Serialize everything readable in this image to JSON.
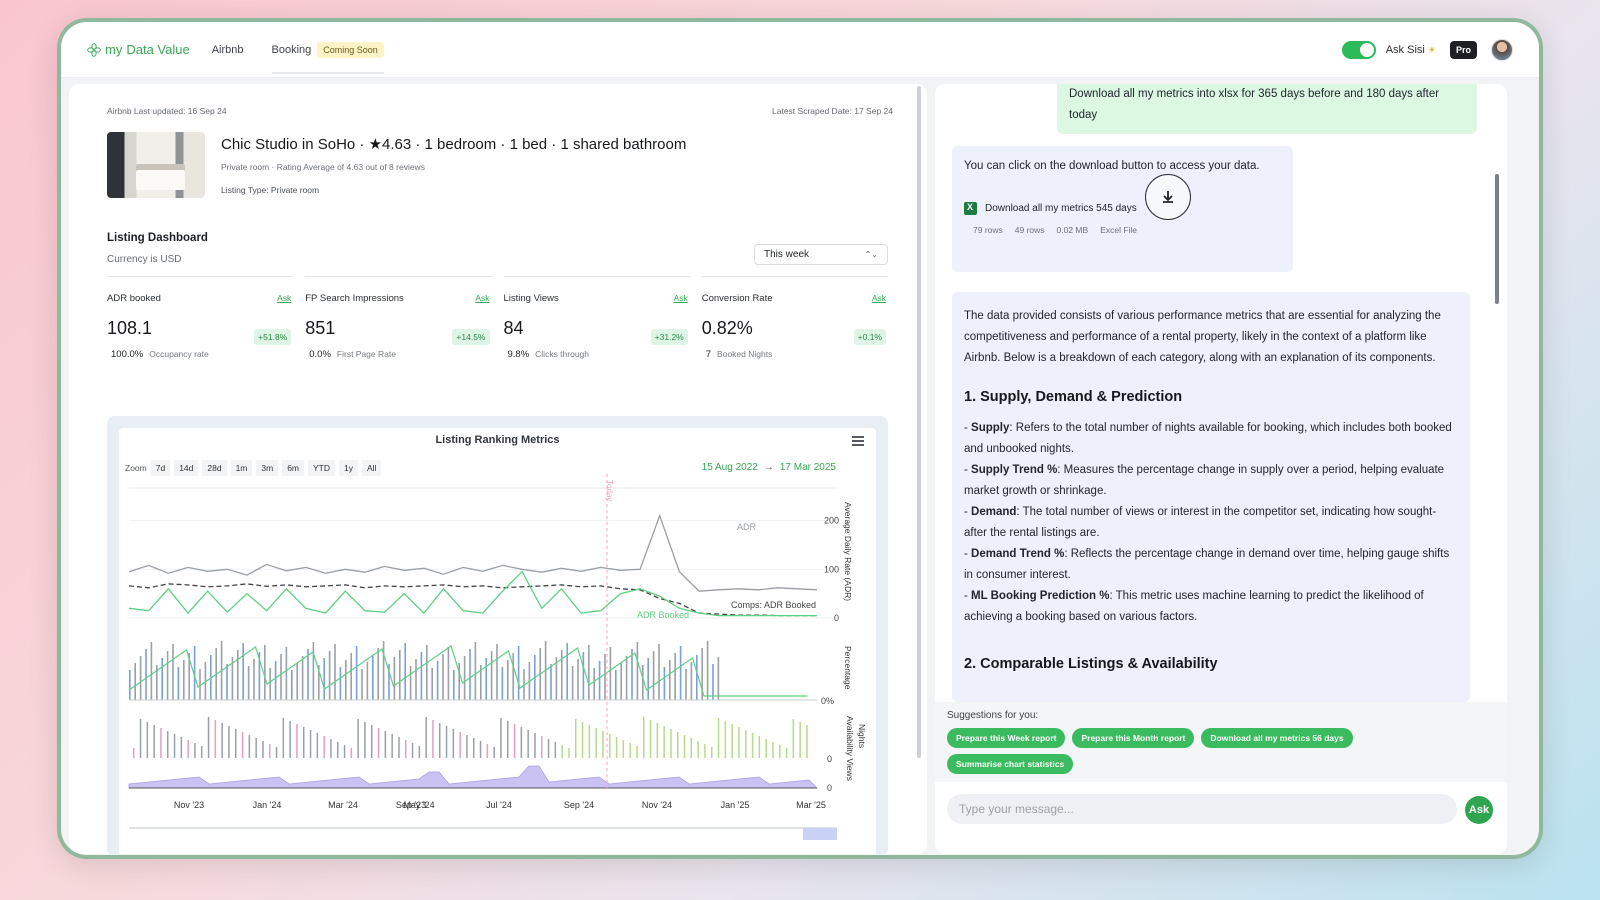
{
  "nav": {
    "logo_prefix": "my",
    "logo_main": "Data Value",
    "links": [
      "Airbnb",
      "Booking"
    ],
    "coming_soon": "Coming Soon",
    "ask_label": "Ask Sisi",
    "pro": "Pro"
  },
  "listing": {
    "last_updated": "Airbnb Last updated: 16 Sep 24",
    "scraped": "Latest Scraped Date: 17 Sep 24",
    "title": "Chic Studio in SoHo · ★4.63 · 1 bedroom · 1 bed · 1 shared bathroom",
    "subtitle": "Private room · Rating Average of 4.63 out of 8 reviews",
    "type": "Listing Type: Private room"
  },
  "dashboard": {
    "title": "Listing Dashboard",
    "currency": "Currency is USD",
    "period": "This week",
    "metrics": [
      {
        "name": "ADR booked",
        "ask": "Ask",
        "value": "108.1",
        "change": "+51.8%",
        "sub_value": "100.0%",
        "sub_label": "Occupancy rate"
      },
      {
        "name": "FP Search Impressions",
        "ask": "Ask",
        "value": "851",
        "change": "+14.5%",
        "sub_value": "0.0%",
        "sub_label": "First Page Rate"
      },
      {
        "name": "Listing Views",
        "ask": "Ask",
        "value": "84",
        "change": "+31.2%",
        "sub_value": "9.8%",
        "sub_label": "Clicks through"
      },
      {
        "name": "Conversion Rate",
        "ask": "Ask",
        "value": "0.82%",
        "change": "+0.1%",
        "sub_value": "7",
        "sub_label": "Booked Nights"
      }
    ]
  },
  "chart": {
    "zoom_label": "Zoom",
    "zoom_options": [
      "7d",
      "14d",
      "28d",
      "1m",
      "3m",
      "6m",
      "YTD",
      "1y",
      "All"
    ],
    "range_start": "15 Aug 2022",
    "range_end": "17 Mar 2025"
  },
  "chart_data": {
    "type": "line",
    "title": "Listing Ranking Metrics",
    "today_label": "Today",
    "x_ticks": [
      "Nov '23",
      "Jan '24",
      "Mar '24",
      "May '24",
      "Sep '23",
      "Jul '24",
      "Sep '24",
      "Nov '24",
      "Jan '25",
      "Mar '25"
    ],
    "panels": [
      {
        "ylabel": "Average Daily Rate (ADR)",
        "y_ticks": [
          "200",
          "100",
          "0"
        ],
        "ylim": [
          0,
          230
        ],
        "series": [
          {
            "name": "ADR",
            "color": "#9a9ea4",
            "values": [
              95,
              108,
              92,
              104,
              96,
              100,
              88,
              110,
              97,
              104,
              92,
              100,
              94,
              106,
              98,
              102,
              90,
              104,
              96,
              108,
              100,
              94,
              102,
              96,
              104,
              98,
              100,
              210,
              95,
              55,
              58,
              60,
              58,
              62,
              60,
              58
            ]
          },
          {
            "name": "Comps: ADR Booked",
            "color": "#444",
            "dashed": true,
            "values": [
              66,
              62,
              70,
              68,
              64,
              66,
              70,
              65,
              68,
              64,
              66,
              68,
              62,
              66,
              64,
              66,
              68,
              64,
              66,
              62,
              64,
              66,
              68,
              64,
              66,
              60,
              58,
              40,
              30,
              10,
              8,
              6,
              6,
              5,
              5,
              5
            ]
          },
          {
            "name": "ADR Booked",
            "color": "#5fcf83",
            "values": [
              20,
              15,
              60,
              10,
              55,
              12,
              50,
              15,
              60,
              20,
              10,
              55,
              15,
              12,
              50,
              10,
              60,
              15,
              10,
              55,
              95,
              20,
              60,
              10,
              15,
              50,
              60,
              45,
              20,
              10,
              5,
              5,
              5,
              5,
              5,
              5
            ]
          }
        ]
      },
      {
        "ylabel": "Percentage",
        "y_ticks": [
          "0%"
        ],
        "ylim": [
          0,
          100
        ]
      },
      {
        "ylabel": "Nights Availability Views",
        "y_ticks": [
          "0",
          "0"
        ]
      }
    ]
  },
  "chat": {
    "user_message": "Download all my metrics into xlsx for 365 days before and 180 days after today",
    "bot_intro": "You can click on the download button to access your data.",
    "file_name": "Download all my metrics 545 days",
    "file_stats": [
      "79 rows",
      "49 rows",
      "0.02 MB",
      "Excel File"
    ],
    "answer_intro": "The data provided consists of various performance metrics that are essential for analyzing the competitiveness and performance of a rental property, likely in the context of a platform like Airbnb. Below is a breakdown of each category, along with an explanation of its components.",
    "section1_title": "1. Supply, Demand & Prediction",
    "bullets": [
      {
        "term": "Supply",
        "text": ": Refers to the total number of nights available for booking, which includes both booked and unbooked nights."
      },
      {
        "term": "Supply Trend %",
        "text": ": Measures the percentage change in supply over a period, helping evaluate market growth or shrinkage."
      },
      {
        "term": "Demand",
        "text": ": The total number of views or interest in the competitor set, indicating how sought-after the rental listings are."
      },
      {
        "term": "Demand Trend %",
        "text": ": Reflects the percentage change in demand over time, helping gauge shifts in consumer interest."
      },
      {
        "term": "ML Booking Prediction %",
        "text": ": This metric uses machine learning to predict the likelihood of achieving a booking based on various factors."
      }
    ],
    "section2_title": "2. Comparable Listings & Availability",
    "suggestions_label": "Suggestions for you:",
    "suggestions": [
      "Prepare this Week report",
      "Prepare this Month report",
      "Download all my metrics 56 days",
      "Summarise chart statistics"
    ],
    "input_placeholder": "Type your message...",
    "ask_button": "Ask"
  }
}
